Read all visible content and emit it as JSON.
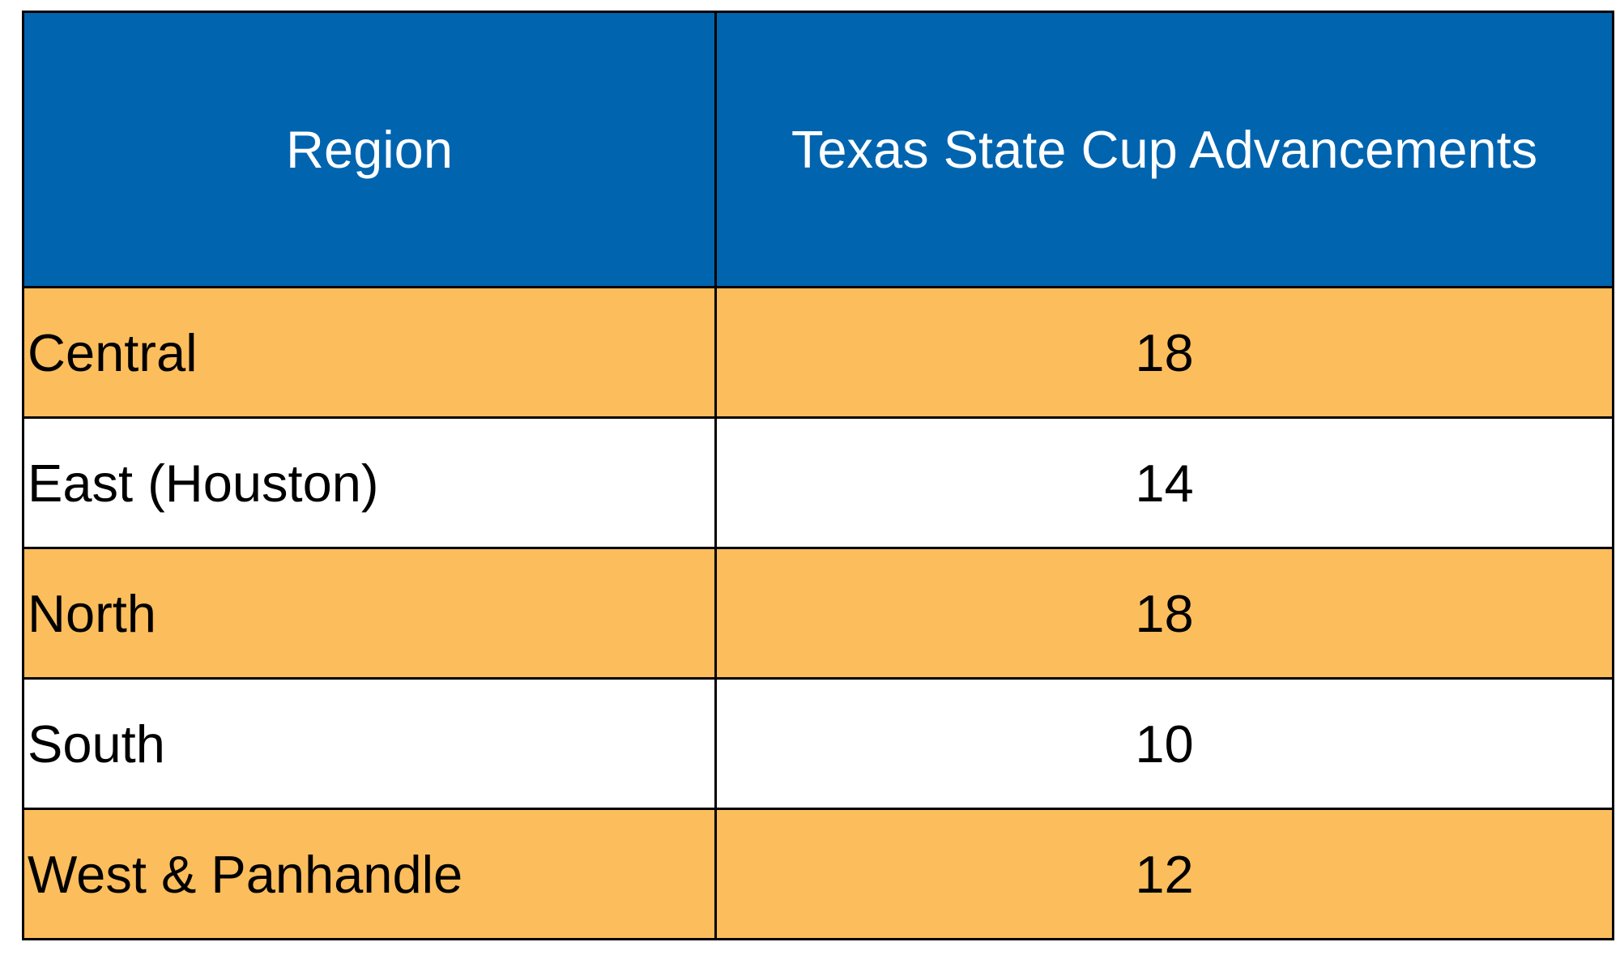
{
  "table": {
    "header": {
      "region_label": "Region",
      "advancements_label": "Texas State Cup Advancements"
    },
    "rows": [
      {
        "region": "Central",
        "advancements": "18"
      },
      {
        "region": "East (Houston)",
        "advancements": "14"
      },
      {
        "region": "North",
        "advancements": "18"
      },
      {
        "region": "South",
        "advancements": "10"
      },
      {
        "region": "West & Panhandle",
        "advancements": "12"
      }
    ]
  },
  "colors": {
    "header_background": "#0064AF",
    "header_text": "#FFFFFF",
    "row_highlight_background": "#FCBD5C",
    "row_plain_background": "#FFFFFF",
    "body_text": "#000000",
    "border": "#000000"
  },
  "chart_data": {
    "type": "table",
    "columns": [
      "Region",
      "Texas State Cup Advancements"
    ],
    "categories": [
      "Central",
      "East (Houston)",
      "North",
      "South",
      "West & Panhandle"
    ],
    "values": [
      18,
      14,
      18,
      10,
      12
    ],
    "layout_hints": {
      "header_style": "blue background, white centered text",
      "row_striping": "odd rows orange, even rows white",
      "grid": "black 3px borders",
      "value_alignment": "center",
      "category_alignment": "left"
    }
  }
}
